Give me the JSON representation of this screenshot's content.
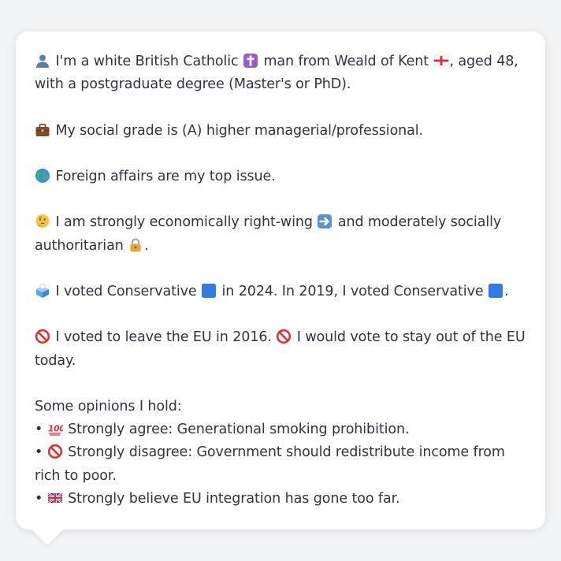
{
  "profile": {
    "intro": {
      "icon": "person-silhouette-icon",
      "text_before_religion": "I'm a white British Catholic",
      "religion_icon": "latin-cross-icon",
      "text_before_flag": "man from Weald of Kent",
      "flag_icon": "england-flag-icon",
      "text_after_flag": ", aged 48, with a postgraduate degree (Master's or PhD)."
    },
    "social_grade": {
      "icon": "briefcase-icon",
      "text": "My social grade is (A) higher managerial/professional."
    },
    "top_issue": {
      "icon": "globe-icon",
      "text": "Foreign affairs are my top issue."
    },
    "ideology": {
      "icon": "thinking-face-icon",
      "text_before_arrow": "I am strongly economically right-wing",
      "arrow_icon": "right-arrow-icon",
      "text_before_lock": "and moderately socially authoritarian",
      "lock_icon": "padlock-icon",
      "text_after_lock": "."
    },
    "voting": {
      "icon": "ballot-box-icon",
      "text_2024": "I voted Conservative",
      "party_icon_2024": "blue-square-icon",
      "text_2019": "in 2024. In 2019, I voted Conservative",
      "party_icon_2019": "blue-square-icon",
      "text_end": "."
    },
    "eu": {
      "icon_1": "prohibited-icon",
      "text_1": "I voted to leave the EU in 2016.",
      "icon_2": "prohibited-icon",
      "text_2": "I would vote to stay out of the EU today."
    },
    "opinions": {
      "heading": "Some opinions I hold:",
      "items": [
        {
          "bullet": "•",
          "icon": "hundred-points-icon",
          "text": "Strongly agree: Generational smoking prohibition."
        },
        {
          "bullet": "•",
          "icon": "prohibited-icon",
          "text": "Strongly disagree: Government should redistribute income from rich to poor."
        },
        {
          "bullet": "•",
          "icon": "uk-flag-icon",
          "text": "Strongly believe EU integration has gone too far."
        }
      ]
    }
  },
  "colors": {
    "background": "#f3f4f6",
    "card": "#ffffff",
    "text": "#2f3440",
    "conservative_blue": "#2f7de1"
  }
}
